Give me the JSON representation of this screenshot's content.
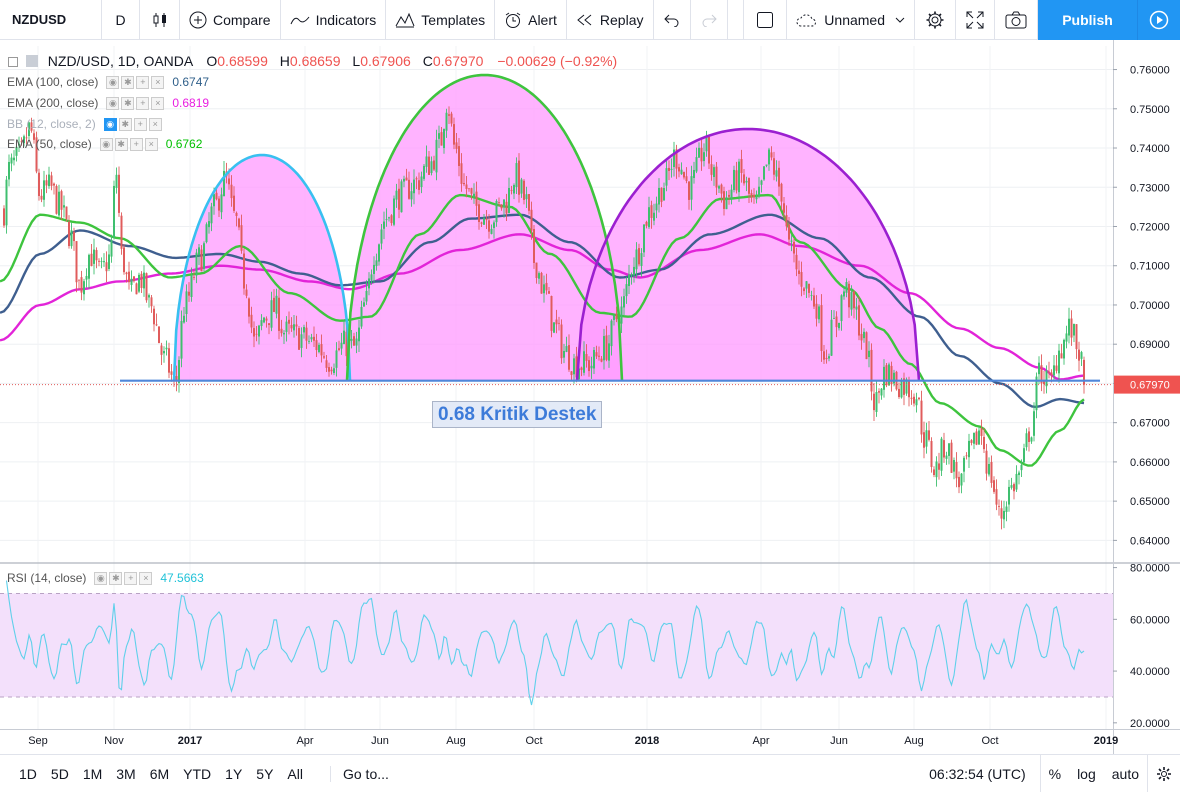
{
  "toolbar": {
    "symbol": "NZDUSD",
    "interval": "D",
    "compare": "Compare",
    "indicators": "Indicators",
    "templates": "Templates",
    "alert": "Alert",
    "replay": "Replay",
    "layout_name": "Unnamed",
    "publish": "Publish"
  },
  "legend": {
    "title": "NZD/USD, 1D, OANDA",
    "open_label": "O",
    "open": "0.68599",
    "high_label": "H",
    "high": "0.68659",
    "low_label": "L",
    "low": "0.67906",
    "close_label": "C",
    "close": "0.67970",
    "change": "−0.00629 (−0.92%)",
    "studies": [
      {
        "name": "EMA (100, close)",
        "value": "0.6747",
        "color": "#2f5f8a"
      },
      {
        "name": "EMA (200, close)",
        "value": "0.6819",
        "color": "#e91ee0"
      },
      {
        "name": "BB (12, close, 2)",
        "value": "",
        "color": "#9aa3b0"
      },
      {
        "name": "EMA (50, close)",
        "value": "0.6762",
        "color": "#00c000"
      }
    ],
    "rsi": {
      "name": "RSI (14, close)",
      "value": "47.5663",
      "color": "#22c3d8"
    }
  },
  "annotation": "0.68 Kritik Destek",
  "price_label": "0.67970",
  "colors": {
    "up": "#3fbf6f",
    "down": "#e05c5c",
    "ema50": "#3ec43e",
    "ema100": "#3f5f8f",
    "ema200": "#e224d8",
    "support": "#4f86d9",
    "fill": "#ff99ff",
    "arc1": "#38c0f0",
    "arc2": "#3ec43e",
    "arc3": "#9b20d0",
    "rsi": "#5fd0ea",
    "rsi_band": "#f3e0fb"
  },
  "chart_data": {
    "type": "candlestick",
    "price_axis": {
      "min": 0.635,
      "max": 0.766,
      "ticks": [
        "0.76000",
        "0.75000",
        "0.74000",
        "0.73000",
        "0.72000",
        "0.71000",
        "0.70000",
        "0.69000",
        "0.68000",
        "0.67000",
        "0.66000",
        "0.65000",
        "0.64000"
      ]
    },
    "time_axis": [
      "Sep",
      "Nov",
      "2017",
      "Apr",
      "Jun",
      "Aug",
      "Oct",
      "2018",
      "Apr",
      "Jun",
      "Aug",
      "Oct",
      "2019"
    ],
    "price_anchors": [
      [
        0,
        0.718
      ],
      [
        10,
        0.735
      ],
      [
        20,
        0.738
      ],
      [
        30,
        0.745
      ],
      [
        40,
        0.728
      ],
      [
        50,
        0.73
      ],
      [
        60,
        0.725
      ],
      [
        70,
        0.718
      ],
      [
        80,
        0.705
      ],
      [
        90,
        0.713
      ],
      [
        100,
        0.708
      ],
      [
        110,
        0.712
      ],
      [
        116,
        0.734
      ],
      [
        122,
        0.712
      ],
      [
        130,
        0.703
      ],
      [
        140,
        0.707
      ],
      [
        150,
        0.7
      ],
      [
        165,
        0.686
      ],
      [
        175,
        0.68
      ],
      [
        185,
        0.7
      ],
      [
        200,
        0.712
      ],
      [
        215,
        0.725
      ],
      [
        225,
        0.732
      ],
      [
        235,
        0.722
      ],
      [
        245,
        0.706
      ],
      [
        255,
        0.69
      ],
      [
        265,
        0.697
      ],
      [
        275,
        0.699
      ],
      [
        285,
        0.693
      ],
      [
        300,
        0.692
      ],
      [
        315,
        0.69
      ],
      [
        330,
        0.686
      ],
      [
        345,
        0.69
      ],
      [
        355,
        0.689
      ],
      [
        365,
        0.7
      ],
      [
        375,
        0.714
      ],
      [
        385,
        0.722
      ],
      [
        400,
        0.728
      ],
      [
        415,
        0.731
      ],
      [
        430,
        0.736
      ],
      [
        440,
        0.741
      ],
      [
        447,
        0.752
      ],
      [
        455,
        0.74
      ],
      [
        465,
        0.73
      ],
      [
        475,
        0.725
      ],
      [
        490,
        0.722
      ],
      [
        505,
        0.726
      ],
      [
        515,
        0.733
      ],
      [
        525,
        0.727
      ],
      [
        535,
        0.711
      ],
      [
        545,
        0.703
      ],
      [
        555,
        0.694
      ],
      [
        565,
        0.688
      ],
      [
        575,
        0.685
      ],
      [
        590,
        0.685
      ],
      [
        605,
        0.689
      ],
      [
        620,
        0.698
      ],
      [
        635,
        0.712
      ],
      [
        650,
        0.724
      ],
      [
        665,
        0.731
      ],
      [
        675,
        0.738
      ],
      [
        690,
        0.73
      ],
      [
        705,
        0.74
      ],
      [
        715,
        0.732
      ],
      [
        725,
        0.727
      ],
      [
        740,
        0.733
      ],
      [
        755,
        0.725
      ],
      [
        770,
        0.737
      ],
      [
        780,
        0.73
      ],
      [
        790,
        0.714
      ],
      [
        800,
        0.707
      ],
      [
        815,
        0.701
      ],
      [
        825,
        0.688
      ],
      [
        835,
        0.695
      ],
      [
        845,
        0.704
      ],
      [
        855,
        0.698
      ],
      [
        865,
        0.69
      ],
      [
        875,
        0.675
      ],
      [
        885,
        0.683
      ],
      [
        900,
        0.68
      ],
      [
        915,
        0.678
      ],
      [
        925,
        0.666
      ],
      [
        935,
        0.658
      ],
      [
        945,
        0.664
      ],
      [
        960,
        0.655
      ],
      [
        970,
        0.662
      ],
      [
        980,
        0.668
      ],
      [
        990,
        0.657
      ],
      [
        1000,
        0.646
      ],
      [
        1010,
        0.653
      ],
      [
        1020,
        0.657
      ],
      [
        1030,
        0.668
      ],
      [
        1040,
        0.683
      ],
      [
        1050,
        0.68
      ],
      [
        1060,
        0.689
      ],
      [
        1070,
        0.694
      ],
      [
        1078,
        0.689
      ],
      [
        1085,
        0.6797
      ]
    ],
    "ema50_anchors": [
      [
        0,
        0.706
      ],
      [
        40,
        0.723
      ],
      [
        80,
        0.721
      ],
      [
        120,
        0.717
      ],
      [
        170,
        0.707
      ],
      [
        200,
        0.708
      ],
      [
        240,
        0.715
      ],
      [
        290,
        0.703
      ],
      [
        340,
        0.696
      ],
      [
        370,
        0.697
      ],
      [
        420,
        0.718
      ],
      [
        460,
        0.728
      ],
      [
        510,
        0.725
      ],
      [
        550,
        0.713
      ],
      [
        600,
        0.698
      ],
      [
        630,
        0.697
      ],
      [
        680,
        0.717
      ],
      [
        720,
        0.727
      ],
      [
        770,
        0.728
      ],
      [
        800,
        0.716
      ],
      [
        850,
        0.704
      ],
      [
        880,
        0.694
      ],
      [
        910,
        0.685
      ],
      [
        940,
        0.675
      ],
      [
        980,
        0.669
      ],
      [
        1000,
        0.663
      ],
      [
        1030,
        0.659
      ],
      [
        1060,
        0.668
      ],
      [
        1085,
        0.676
      ]
    ],
    "ema100_anchors": [
      [
        0,
        0.698
      ],
      [
        40,
        0.713
      ],
      [
        80,
        0.719
      ],
      [
        130,
        0.715
      ],
      [
        175,
        0.712
      ],
      [
        220,
        0.713
      ],
      [
        260,
        0.711
      ],
      [
        300,
        0.708
      ],
      [
        340,
        0.705
      ],
      [
        380,
        0.706
      ],
      [
        430,
        0.716
      ],
      [
        470,
        0.722
      ],
      [
        520,
        0.723
      ],
      [
        570,
        0.716
      ],
      [
        620,
        0.707
      ],
      [
        660,
        0.709
      ],
      [
        710,
        0.718
      ],
      [
        770,
        0.723
      ],
      [
        820,
        0.717
      ],
      [
        870,
        0.707
      ],
      [
        920,
        0.697
      ],
      [
        960,
        0.687
      ],
      [
        1000,
        0.68
      ],
      [
        1035,
        0.674
      ],
      [
        1060,
        0.676
      ],
      [
        1085,
        0.675
      ]
    ],
    "ema200_anchors": [
      [
        0,
        0.691
      ],
      [
        40,
        0.7
      ],
      [
        80,
        0.704
      ],
      [
        120,
        0.706
      ],
      [
        170,
        0.708
      ],
      [
        220,
        0.71
      ],
      [
        260,
        0.709
      ],
      [
        310,
        0.706
      ],
      [
        350,
        0.704
      ],
      [
        400,
        0.708
      ],
      [
        460,
        0.714
      ],
      [
        520,
        0.718
      ],
      [
        570,
        0.714
      ],
      [
        610,
        0.709
      ],
      [
        640,
        0.707
      ],
      [
        700,
        0.714
      ],
      [
        760,
        0.718
      ],
      [
        800,
        0.715
      ],
      [
        860,
        0.71
      ],
      [
        910,
        0.703
      ],
      [
        960,
        0.694
      ],
      [
        1000,
        0.689
      ],
      [
        1040,
        0.684
      ],
      [
        1060,
        0.681
      ],
      [
        1085,
        0.682
      ]
    ],
    "support": {
      "value": 0.6807,
      "label": "0.68 Kritik Destek"
    },
    "rsi_axis": {
      "min": 18,
      "max": 81,
      "ticks": [
        "80.0000",
        "60.0000",
        "40.0000",
        "20.0000"
      ],
      "upper": 70,
      "lower": 30
    }
  },
  "timeframes": [
    "1D",
    "5D",
    "1M",
    "3M",
    "6M",
    "YTD",
    "1Y",
    "5Y",
    "All"
  ],
  "goto": "Go to...",
  "clock": "06:32:54 (UTC)",
  "bottom_right": {
    "percent": "%",
    "log": "log",
    "auto": "auto"
  }
}
